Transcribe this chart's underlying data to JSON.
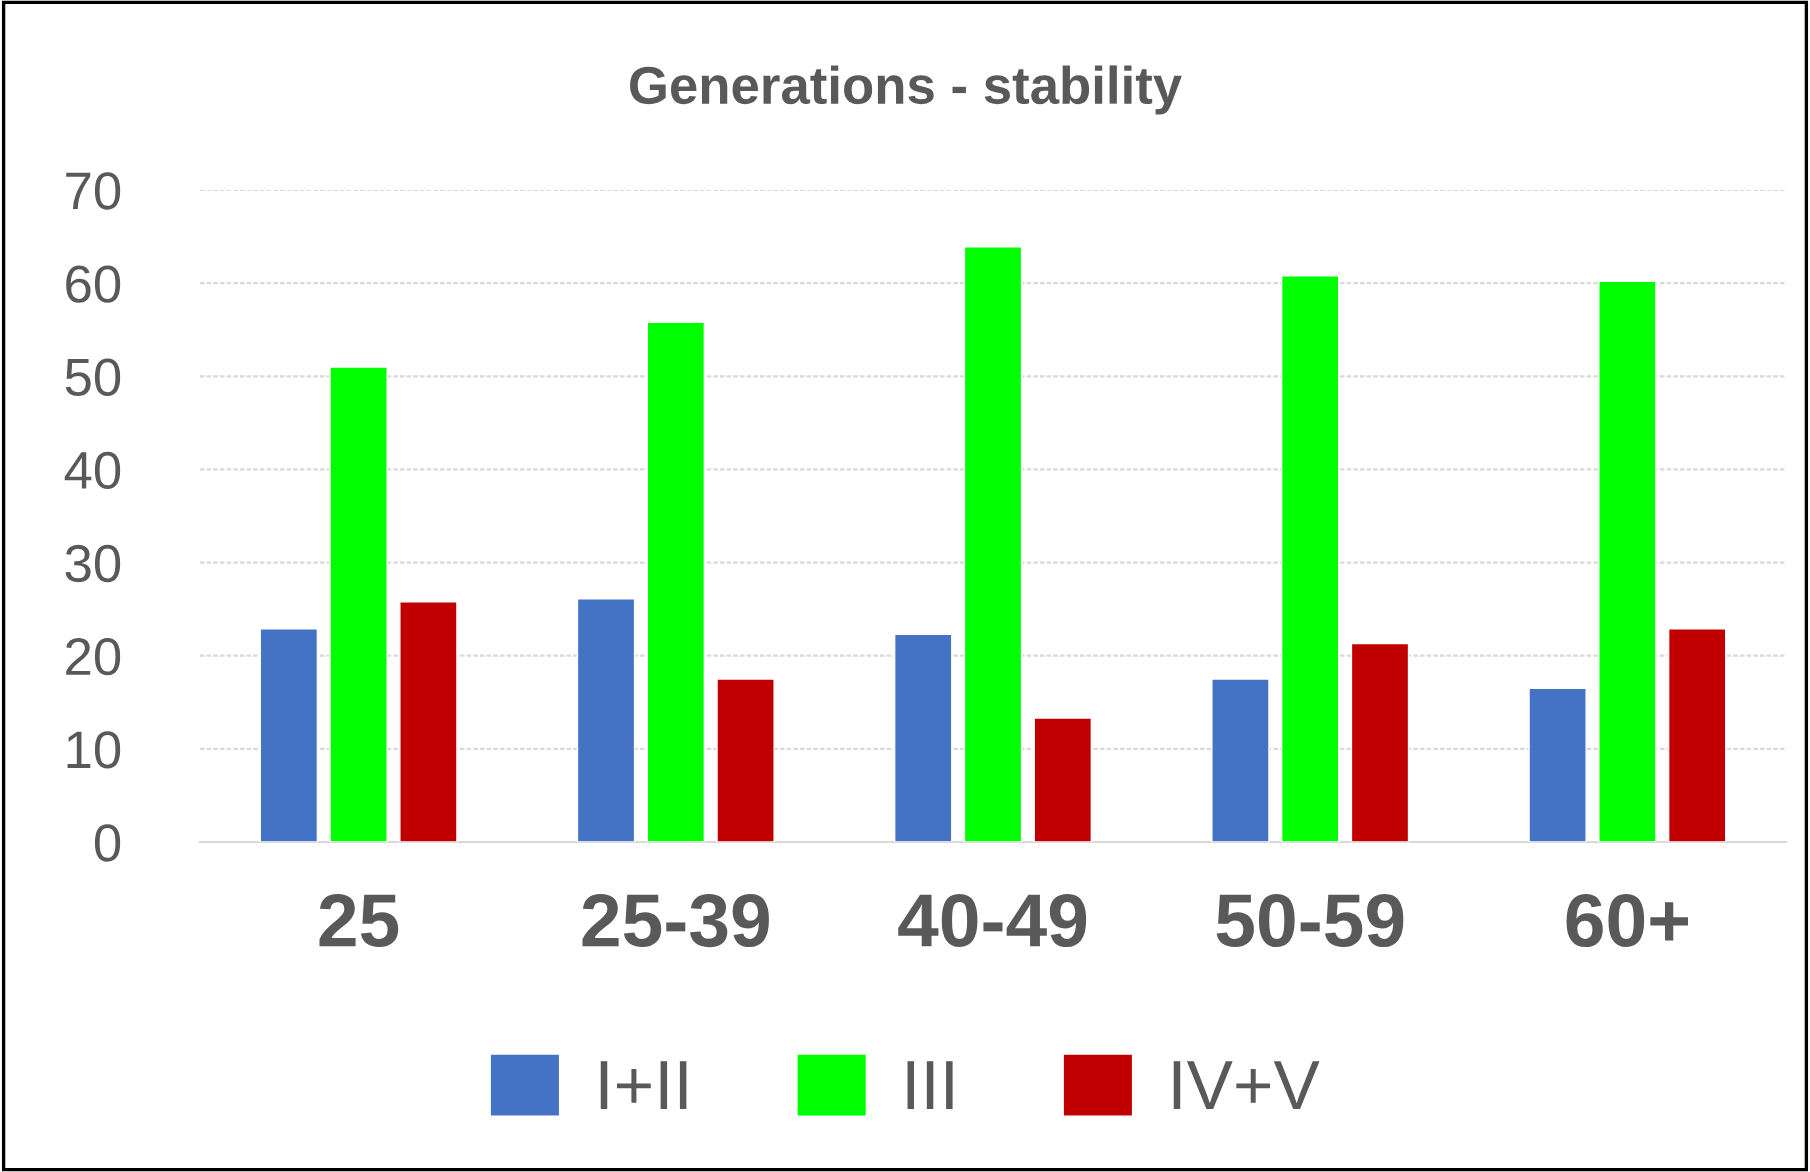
{
  "chart_data": {
    "type": "bar",
    "title": "Generations - stability",
    "categories": [
      "25",
      "25-39",
      "40-49",
      "50-59",
      "60+"
    ],
    "series": [
      {
        "name": "I+II",
        "color": "#4472c4",
        "values": [
          22.9,
          26.1,
          22.3,
          17.5,
          16.5
        ]
      },
      {
        "name": "III",
        "color": "#00ff00",
        "values": [
          51.0,
          55.8,
          63.9,
          60.8,
          60.2
        ]
      },
      {
        "name": "IV+V",
        "color": "#c00000",
        "values": [
          25.8,
          17.5,
          13.3,
          21.3,
          22.9
        ]
      }
    ],
    "ylim": [
      0,
      70
    ],
    "yticks": [
      0,
      10,
      20,
      30,
      40,
      50,
      60,
      70
    ],
    "grid": "y",
    "legend": "bottom"
  }
}
